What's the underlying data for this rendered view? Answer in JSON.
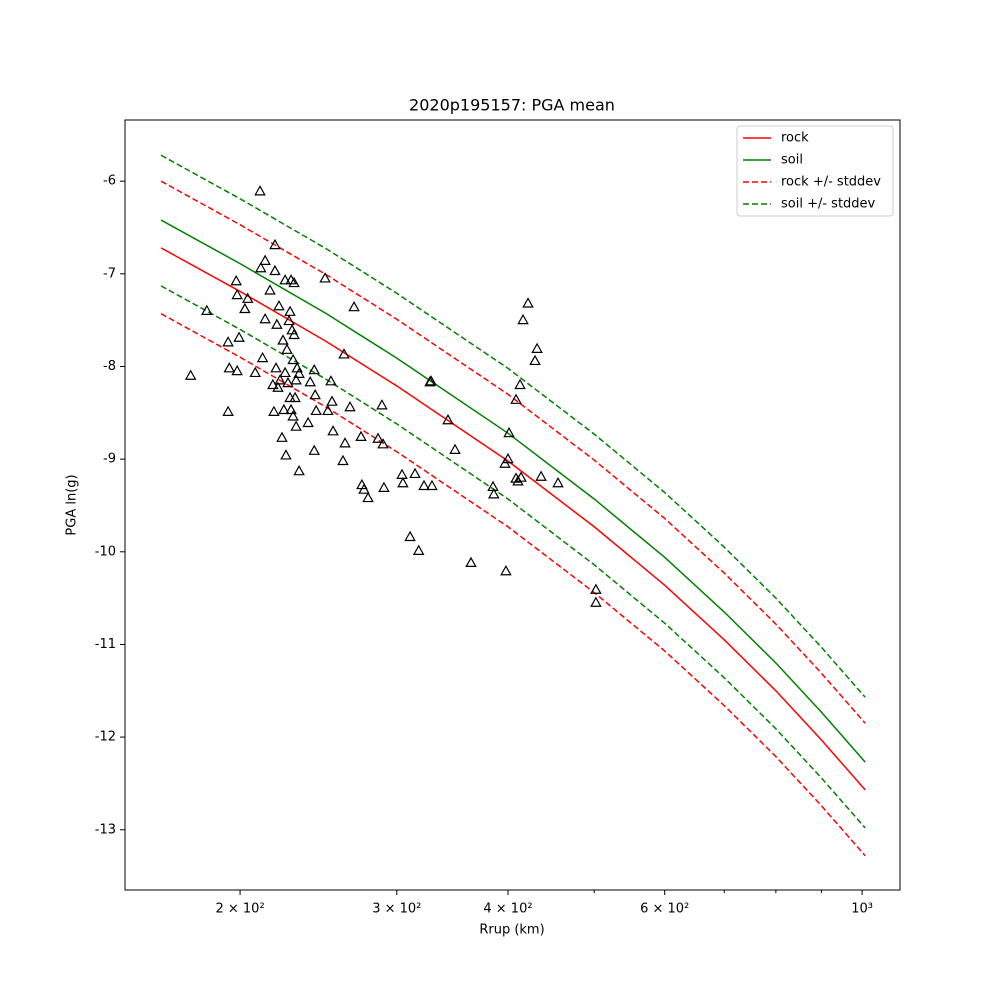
{
  "chart_data": {
    "type": "line",
    "title": "2020p195157: PGA mean",
    "xlabel": "Rrup (km)",
    "ylabel": "PGA ln(g)",
    "xscale": "log",
    "xlim": [
      148.5,
      1103
    ],
    "ylim": [
      -13.65,
      -5.34
    ],
    "xticks": [
      {
        "value": 200,
        "label": "2 × 10²"
      },
      {
        "value": 300,
        "label": "3 × 10²"
      },
      {
        "value": 400,
        "label": "4 × 10²"
      },
      {
        "value": 600,
        "label": "6 × 10²"
      },
      {
        "value": 1000,
        "label": "10³"
      }
    ],
    "xminorticks": [
      500,
      700,
      800,
      900
    ],
    "yticks": [
      -6,
      -7,
      -8,
      -9,
      -10,
      -11,
      -12,
      -13
    ],
    "legend": "upper right",
    "x": [
      163,
      200,
      250,
      300,
      400,
      500,
      600,
      700,
      800,
      900,
      1008
    ],
    "series": [
      {
        "name": "rock",
        "color": "#ff0000",
        "style": "solid",
        "values": [
          -6.72,
          -7.19,
          -7.73,
          -8.21,
          -9.02,
          -9.73,
          -10.36,
          -10.95,
          -11.5,
          -12.03,
          -12.57
        ]
      },
      {
        "name": "soil",
        "color": "#008000",
        "style": "solid",
        "values": [
          -6.42,
          -6.89,
          -7.43,
          -7.91,
          -8.72,
          -9.43,
          -10.06,
          -10.65,
          -11.2,
          -11.73,
          -12.27
        ]
      },
      {
        "name": "rock +/- stddev",
        "color": "#ff0000",
        "style": "dashed",
        "upper": [
          -6.0,
          -6.47,
          -7.01,
          -7.49,
          -8.3,
          -9.01,
          -9.64,
          -10.23,
          -10.78,
          -11.31,
          -11.85
        ],
        "lower": [
          -7.43,
          -7.9,
          -8.44,
          -8.92,
          -9.73,
          -10.44,
          -11.07,
          -11.66,
          -12.21,
          -12.74,
          -13.28
        ]
      },
      {
        "name": "soil +/- stddev",
        "color": "#008000",
        "style": "dashed",
        "upper": [
          -5.72,
          -6.19,
          -6.73,
          -7.21,
          -8.02,
          -8.73,
          -9.36,
          -9.95,
          -10.5,
          -11.03,
          -11.57
        ],
        "lower": [
          -7.13,
          -7.6,
          -8.14,
          -8.62,
          -9.43,
          -10.14,
          -10.77,
          -11.36,
          -11.91,
          -12.44,
          -12.98
        ]
      }
    ],
    "scatter": {
      "color": "#000000",
      "marker": "triangle",
      "x": [
        176,
        183.5,
        193.9,
        193.9,
        194.5,
        198,
        198.5,
        198.5,
        199.5,
        202.5,
        204,
        208,
        210.6,
        211,
        212,
        213.4,
        213.4,
        216.1,
        217.7,
        218.3,
        218.9,
        218.9,
        219.5,
        220,
        220.6,
        221.2,
        221.8,
        222.9,
        223.5,
        224,
        224.7,
        224.7,
        225.2,
        225.8,
        226.4,
        227,
        227.6,
        227.6,
        228.2,
        228.2,
        228.8,
        229.4,
        229.4,
        230,
        230,
        230.6,
        231.2,
        231.8,
        231.2,
        233,
        233,
        238.5,
        239.8,
        242.3,
        242.3,
        242.9,
        243.5,
        249.2,
        251,
        253,
        253.7,
        254.4,
        261,
        261.7,
        262.4,
        265.8,
        268.6,
        273.5,
        274.1,
        275.6,
        278.5,
        285.8,
        288.7,
        289.5,
        290.2,
        304.1,
        304.8,
        310.5,
        314.5,
        317.5,
        321.9,
        326.9,
        327.8,
        328.6,
        342.5,
        348.8,
        363.5,
        384.8,
        385.6,
        396.9,
        397.9,
        400,
        401.1,
        408.4,
        408.4,
        410.5,
        412.7,
        413.8,
        415.9,
        421.3,
        429,
        431.3,
        435.8,
        455.3,
        502.2,
        502.2
      ],
      "y": [
        -8.1,
        -7.4,
        -7.74,
        -8.49,
        -8.02,
        -7.08,
        -7.23,
        -8.05,
        -7.69,
        -7.38,
        -7.27,
        -8.07,
        -6.11,
        -6.94,
        -7.91,
        -6.86,
        -7.49,
        -7.18,
        -8.2,
        -8.49,
        -6.69,
        -6.97,
        -8.02,
        -7.55,
        -8.23,
        -7.35,
        -8.15,
        -8.77,
        -7.72,
        -8.47,
        -7.07,
        -8.07,
        -8.96,
        -7.82,
        -8.18,
        -7.51,
        -7.41,
        -8.34,
        -8.47,
        -7.07,
        -7.61,
        -7.93,
        -8.54,
        -7.1,
        -7.66,
        -8.34,
        -8.15,
        -8.02,
        -8.65,
        -8.08,
        -9.13,
        -8.61,
        -8.17,
        -8.04,
        -8.91,
        -8.31,
        -8.48,
        -7.05,
        -8.48,
        -8.16,
        -8.38,
        -8.7,
        -9.02,
        -7.87,
        -8.83,
        -8.44,
        -7.36,
        -8.76,
        -9.28,
        -9.33,
        -9.42,
        -8.78,
        -8.42,
        -8.84,
        -9.31,
        -9.17,
        -9.26,
        -9.84,
        -9.16,
        -9.99,
        -9.29,
        -8.17,
        -8.16,
        -9.29,
        -8.58,
        -8.9,
        -10.12,
        -9.3,
        -9.38,
        -9.05,
        -10.21,
        -9.0,
        -8.72,
        -8.36,
        -9.21,
        -9.24,
        -8.2,
        -9.2,
        -7.5,
        -7.32,
        -7.94,
        -7.81,
        -9.19,
        -9.26,
        -10.41,
        -10.55
      ]
    }
  }
}
